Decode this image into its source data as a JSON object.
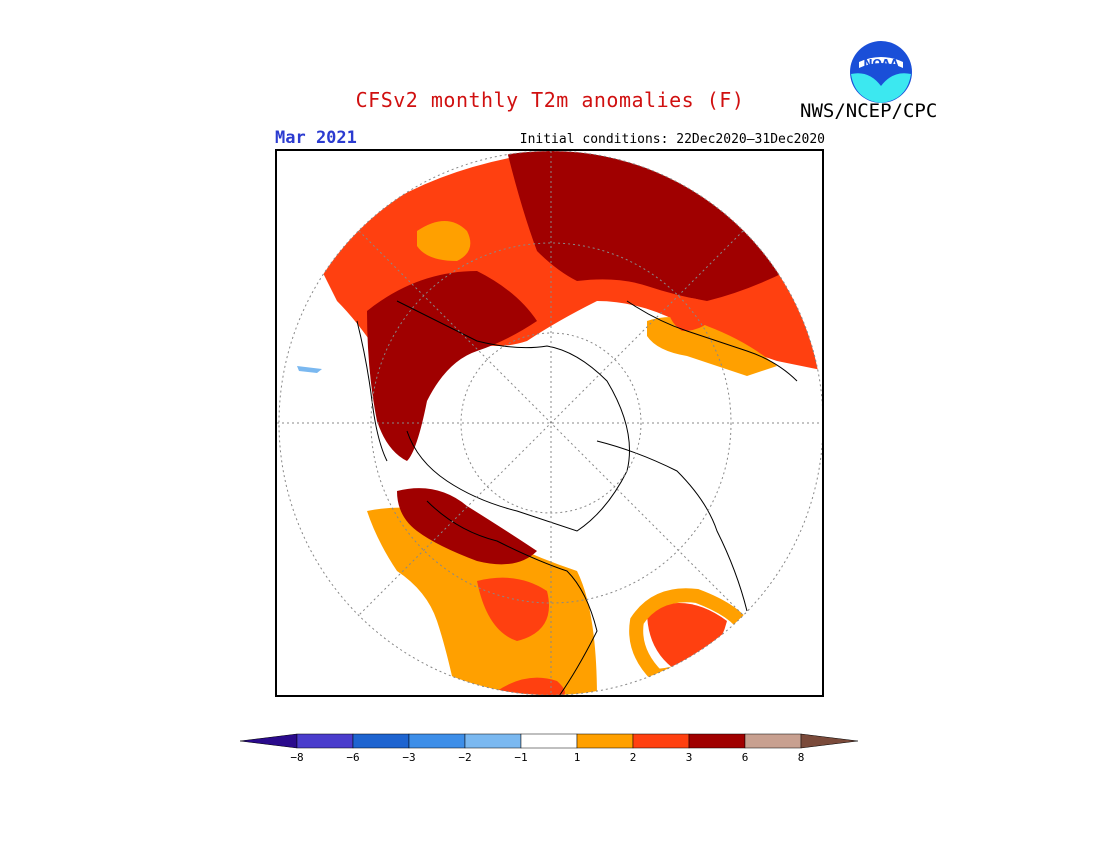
{
  "header": {
    "title": "CFSv2 monthly T2m anomalies (F)",
    "agency": "NWS/NCEP/CPC",
    "month": "Mar 2021",
    "initial_conditions": "Initial conditions: 22Dec2020–31Dec2020",
    "logo_text": "NOAA"
  },
  "colorbar": {
    "colors": [
      "#2a0a8c",
      "#4a3ccc",
      "#1e64d0",
      "#3d8ee8",
      "#7ab8f0",
      "#ffffff",
      "#ffa000",
      "#ff4010",
      "#a00000",
      "#c8a090",
      "#7a4a3a"
    ],
    "labels": [
      "−8",
      "−6",
      "−3",
      "−2",
      "−1",
      "1",
      "2",
      "3",
      "6",
      "8"
    ]
  },
  "map_colors": {
    "anom_1_2": "#ffa000",
    "anom_2_3": "#ff4010",
    "anom_3_6": "#a00000",
    "anom_neg": "#7ab8f0",
    "land_outline": "#000000"
  }
}
